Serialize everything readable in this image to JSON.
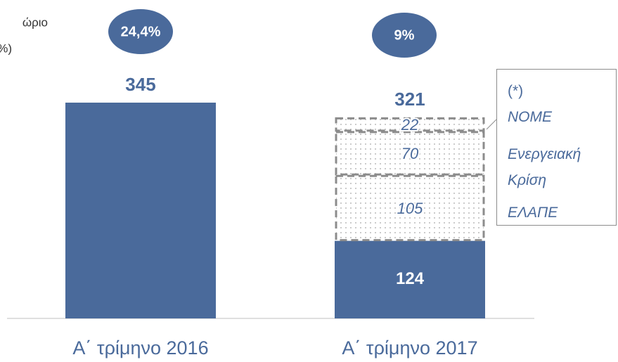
{
  "chart_data": {
    "type": "stacked-bar",
    "categories": [
      "Α΄ τρίμηνο 2016",
      "Α΄ τρίμηνο 2017"
    ],
    "series": [
      {
        "values": [
          345,
          124
        ],
        "color": "#4a6a9b"
      },
      {
        "name": "ΕΛΑΠΕ",
        "values": [
          null,
          105
        ]
      },
      {
        "name": "Ενεργειακή Κρίση",
        "values": [
          null,
          70
        ]
      },
      {
        "name": "ΝΟΜΕ",
        "values": [
          null,
          22
        ]
      }
    ],
    "totals": [
      345,
      321
    ],
    "legend_title": "(*)",
    "margins": {
      "label": [
        "ώριο",
        "%)"
      ],
      "values": [
        24.4,
        9
      ],
      "value_labels": [
        "24,4%",
        "9%"
      ]
    }
  }
}
